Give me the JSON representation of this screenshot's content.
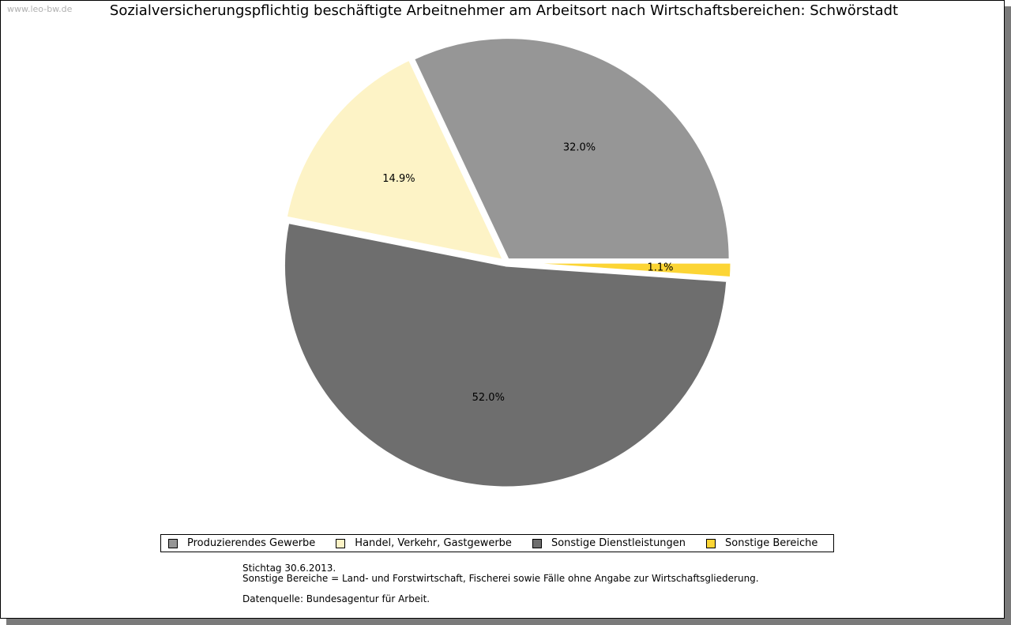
{
  "watermark": "www.leo-bw.de",
  "chart_data": {
    "type": "pie",
    "title": "Sozialversicherungspflichtig beschäftigte Arbeitnehmer am Arbeitsort nach Wirtschaftsbereichen: Schwörstadt",
    "legend_position": "bottom",
    "slices": [
      {
        "label": "Produzierendes Gewerbe",
        "value": 32.0,
        "display": "32.0%",
        "color": "#969696"
      },
      {
        "label": "Handel, Verkehr, Gastgewerbe",
        "value": 14.9,
        "display": "14.9%",
        "color": "#fdf3c6"
      },
      {
        "label": "Sonstige Dienstleistungen",
        "value": 52.0,
        "display": "52.0%",
        "color": "#6e6e6e"
      },
      {
        "label": "Sonstige Bereiche",
        "value": 1.1,
        "display": "1.1%",
        "color": "#fcd535"
      }
    ]
  },
  "notes": {
    "stichtag": "Stichtag 30.6.2013.",
    "sonstige": "Sonstige Bereiche = Land- und Forstwirtschaft, Fischerei sowie Fälle ohne Angabe zur Wirtschaftsgliederung.",
    "quelle": "Datenquelle: Bundesagentur für Arbeit."
  }
}
